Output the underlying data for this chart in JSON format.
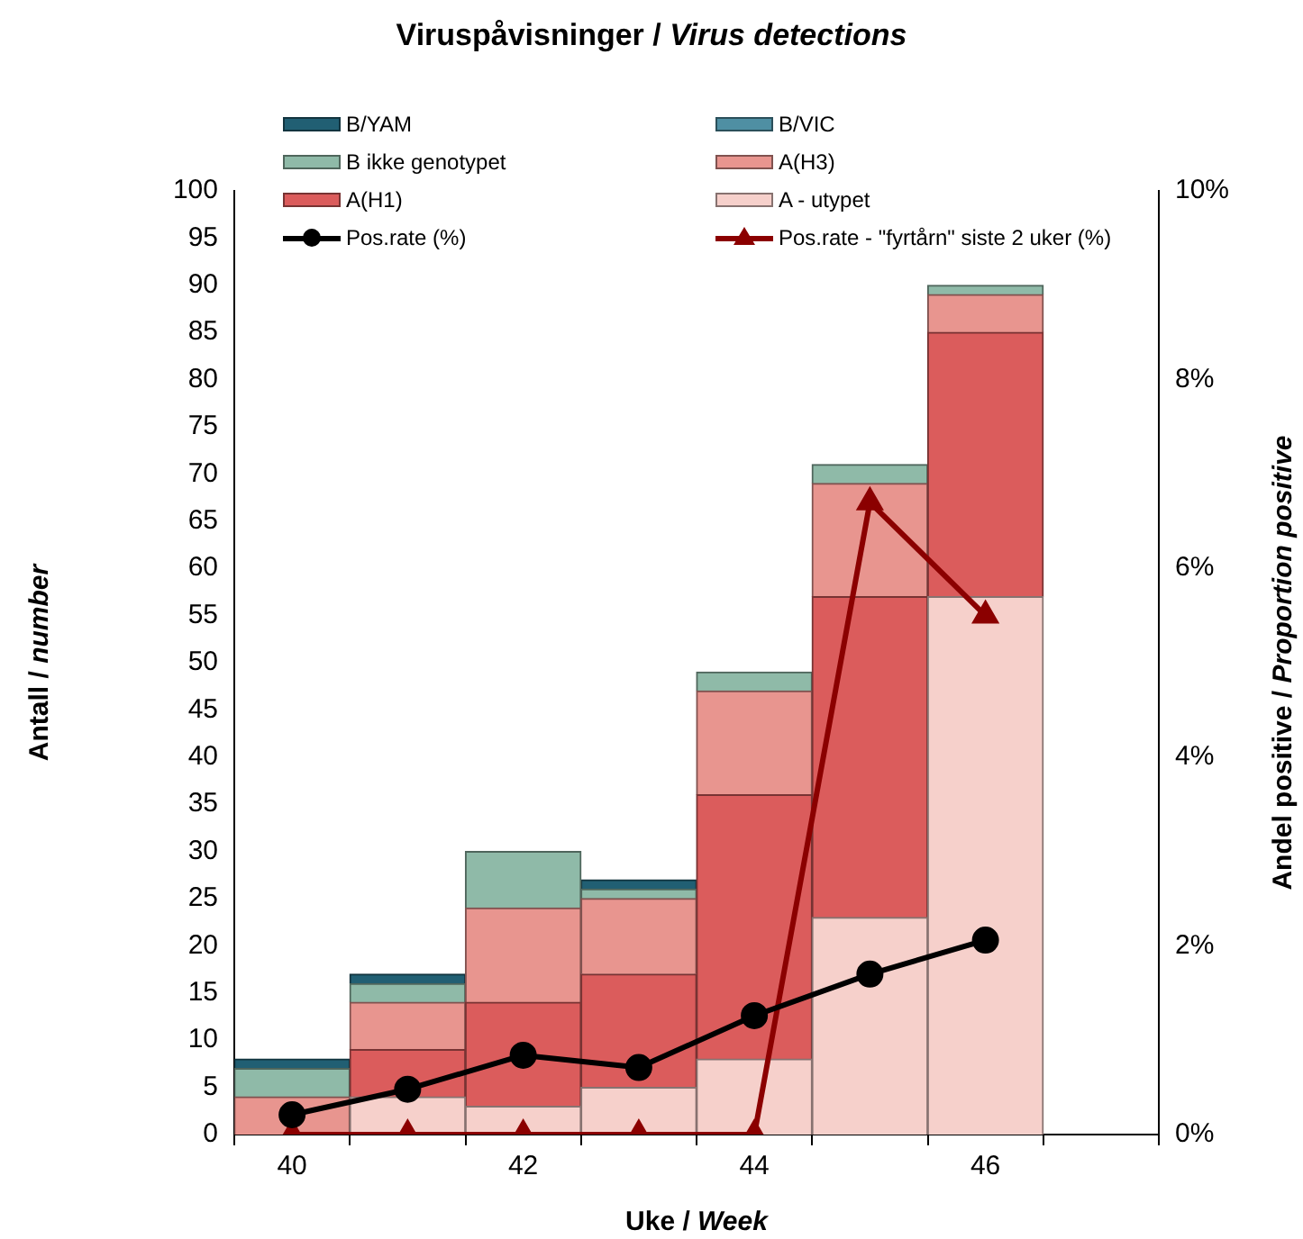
{
  "chart_data": {
    "type": "bar",
    "title": "Viruspåvisninger / Virus detections",
    "xlabel": "Uke / Week",
    "ylabel": "Antall / number",
    "y2label": "Andel positive / Proportion positive",
    "categories": [
      "40",
      null,
      "42",
      null,
      "44",
      null,
      "46",
      null
    ],
    "stacked": true,
    "grid": false,
    "legend": "top",
    "ylim": [
      0,
      100
    ],
    "yticks": [
      0,
      5,
      10,
      15,
      20,
      25,
      30,
      35,
      40,
      45,
      50,
      55,
      60,
      65,
      70,
      75,
      80,
      85,
      90,
      95,
      100
    ],
    "y2lim": [
      0,
      10
    ],
    "y2ticks": [
      {
        "value": 0,
        "label": "0%"
      },
      {
        "value": 2,
        "label": "2%"
      },
      {
        "value": 4,
        "label": "4%"
      },
      {
        "value": 6,
        "label": "6%"
      },
      {
        "value": 8,
        "label": "8%"
      },
      {
        "value": 10,
        "label": "10%"
      }
    ],
    "series": [
      {
        "name": "A - utypet",
        "color": "#f6d0cb",
        "values": [
          0,
          4,
          3,
          5,
          8,
          23,
          57,
          null
        ]
      },
      {
        "name": "A(H1)",
        "color": "#db5c5c",
        "values": [
          0,
          5,
          11,
          12,
          28,
          34,
          28,
          null
        ]
      },
      {
        "name": "A(H3)",
        "color": "#e8958f",
        "values": [
          4,
          5,
          10,
          8,
          11,
          12,
          4,
          null
        ]
      },
      {
        "name": "B ikke genotypet",
        "color": "#8fbaa8",
        "values": [
          3,
          2,
          6,
          1,
          2,
          2,
          1,
          null
        ]
      },
      {
        "name": "B/VIC",
        "color": "#4f8fa3",
        "values": [
          0,
          0,
          0,
          0,
          0,
          0,
          0,
          null
        ]
      },
      {
        "name": "B/YAM",
        "color": "#215f73",
        "values": [
          1,
          1,
          0,
          1,
          0,
          0,
          0,
          null
        ]
      },
      {
        "name": "Pos.rate (%)",
        "type": "line",
        "axis": "y2",
        "marker": "circle",
        "color": "#000000",
        "values": [
          0.21,
          0.48,
          0.84,
          0.71,
          1.26,
          1.7,
          2.06,
          null
        ]
      },
      {
        "name": "Pos.rate - \"fyrtårn\" siste 2 uker (%)",
        "type": "line",
        "axis": "y2",
        "marker": "triangle",
        "color": "#8b0000",
        "values": [
          0,
          0,
          0,
          0,
          0,
          6.7,
          5.5,
          null
        ]
      }
    ]
  }
}
